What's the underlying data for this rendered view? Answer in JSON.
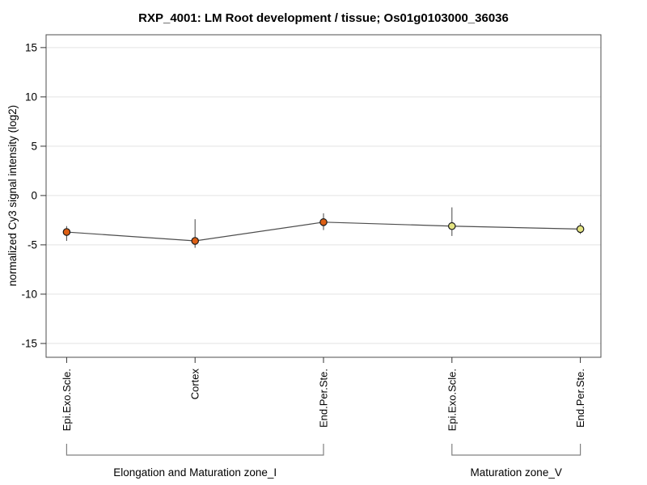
{
  "figure": {
    "title": "RXP_4001: LM Root development / tissue; Os01g0103000_36036"
  },
  "chart_data": {
    "type": "line",
    "title": "RXP_4001: LM Root development / tissue; Os01g0103000_36036",
    "xlabel": "",
    "ylabel": "normalized Cy3 signal intensity (log2)",
    "ylim": [
      -16.4,
      16.3
    ],
    "xlim": [
      0.84,
      5.16
    ],
    "yticks": [
      15,
      10,
      5,
      0,
      -5,
      -10,
      -15
    ],
    "grid": true,
    "legend": "none",
    "categories": [
      "Epi.Exo.Scle.",
      "Cortex",
      "End.Per.Ste.",
      "Epi.Exo.Scle.",
      "End.Per.Ste."
    ],
    "values": [
      -3.7,
      -4.6,
      -2.7,
      -3.1,
      -3.4
    ],
    "error_low": [
      -4.6,
      -5.3,
      -3.5,
      -4.1,
      -3.9
    ],
    "error_high": [
      -3.1,
      -2.4,
      -1.8,
      -1.2,
      -2.8
    ],
    "point_colors": [
      "#dd5f14",
      "#dd5f14",
      "#dd5f14",
      "#e4e482",
      "#e4e482"
    ],
    "marker_outline": "#1a1a1a",
    "line_color": "#4d4d4d",
    "error_bar_color": "#555555",
    "groups": [
      {
        "label": "Elongation and Maturation zone_I",
        "from": 1,
        "to": 3
      },
      {
        "label": "Maturation zone_V",
        "from": 4,
        "to": 5
      }
    ]
  }
}
